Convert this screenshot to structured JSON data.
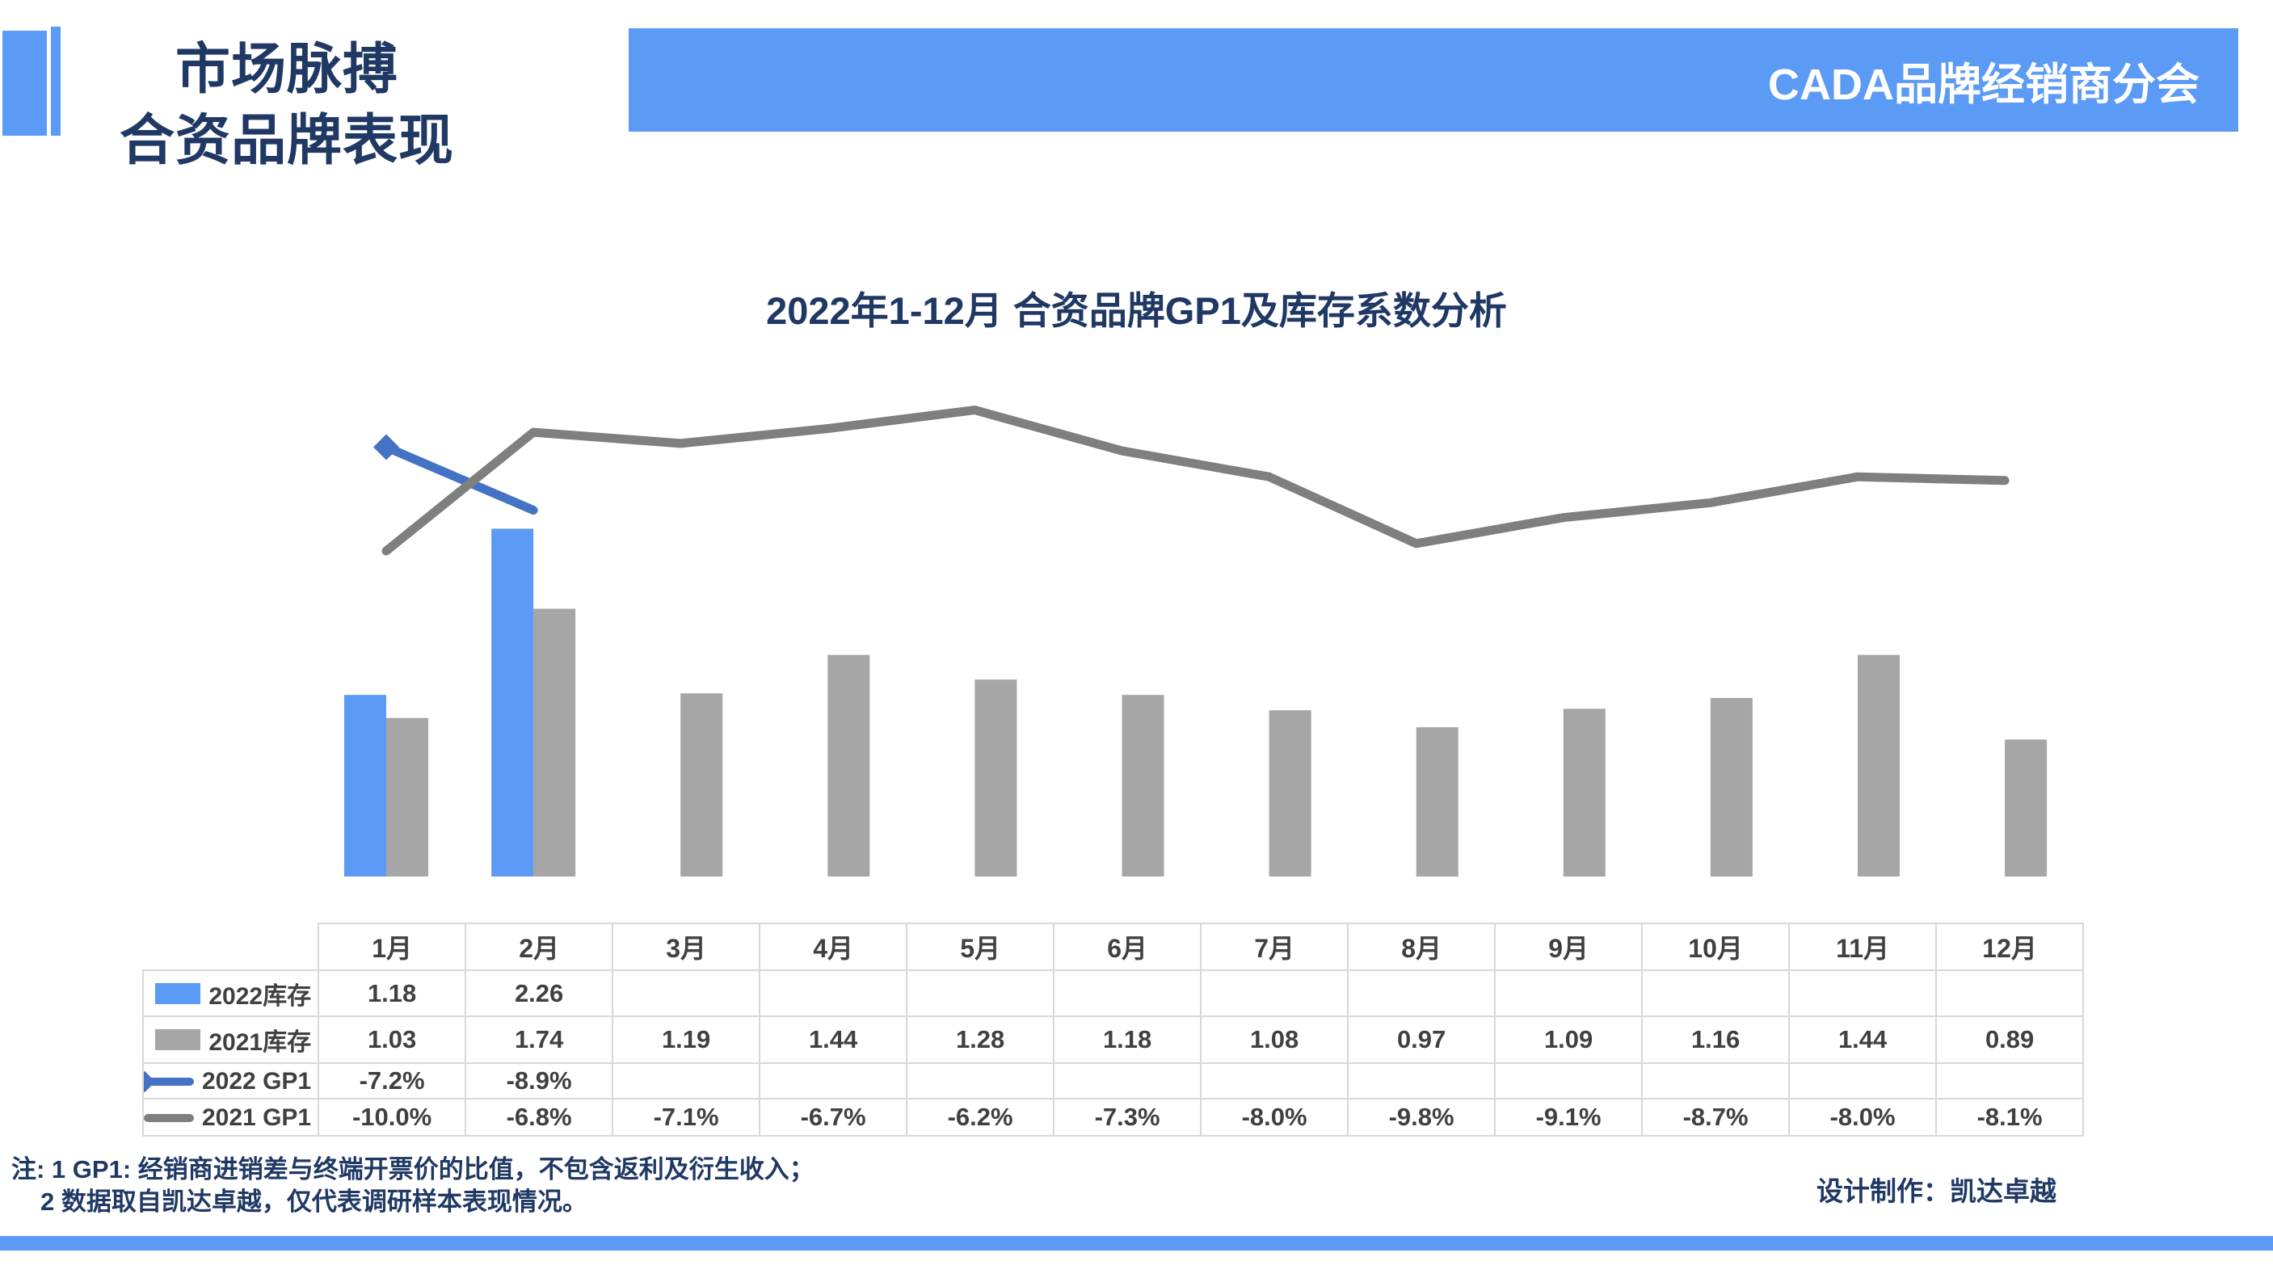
{
  "header": {
    "title_line1": "市场脉搏",
    "title_line2": "合资品牌表现",
    "banner_text": "CADA品牌经销商分会"
  },
  "chart": {
    "title": "2022年1-12月 合资品牌GP1及库存系数分析"
  },
  "chart_data": {
    "type": "combo",
    "title": "2022年1-12月 合资品牌GP1及库存系数分析",
    "categories": [
      "1月",
      "2月",
      "3月",
      "4月",
      "5月",
      "6月",
      "7月",
      "8月",
      "9月",
      "10月",
      "11月",
      "12月"
    ],
    "series": [
      {
        "name": "2022库存",
        "type": "bar",
        "axis": "left",
        "color": "#5B9BF5",
        "values": [
          1.18,
          2.26,
          null,
          null,
          null,
          null,
          null,
          null,
          null,
          null,
          null,
          null
        ]
      },
      {
        "name": "2021库存",
        "type": "bar",
        "axis": "left",
        "color": "#A6A6A6",
        "values": [
          1.03,
          1.74,
          1.19,
          1.44,
          1.28,
          1.18,
          1.08,
          0.97,
          1.09,
          1.16,
          1.44,
          0.89
        ]
      },
      {
        "name": "2022 GP1",
        "type": "line",
        "axis": "right",
        "unit": "%",
        "color": "#4472C4",
        "marker": "diamond-first",
        "values": [
          -7.2,
          -8.9,
          null,
          null,
          null,
          null,
          null,
          null,
          null,
          null,
          null,
          null
        ]
      },
      {
        "name": "2021 GP1",
        "type": "line",
        "axis": "right",
        "unit": "%",
        "color": "#7F7F7F",
        "marker": "none",
        "values": [
          -10.0,
          -6.8,
          -7.1,
          -6.7,
          -6.2,
          -7.3,
          -8.0,
          -9.8,
          -9.1,
          -8.7,
          -8.0,
          -8.1
        ]
      }
    ],
    "layout_hints": {
      "legend_position": "table-left",
      "grid": false,
      "axes_visible": false
    }
  },
  "table": {
    "header": [
      "1月",
      "2月",
      "3月",
      "4月",
      "5月",
      "6月",
      "7月",
      "8月",
      "9月",
      "10月",
      "11月",
      "12月"
    ],
    "rows": [
      {
        "label": "2022库存",
        "swatch": "bar-blue",
        "values": [
          "1.18",
          "2.26",
          "",
          "",
          "",
          "",
          "",
          "",
          "",
          "",
          "",
          ""
        ]
      },
      {
        "label": "2021库存",
        "swatch": "bar-gray",
        "values": [
          "1.03",
          "1.74",
          "1.19",
          "1.44",
          "1.28",
          "1.18",
          "1.08",
          "0.97",
          "1.09",
          "1.16",
          "1.44",
          "0.89"
        ]
      },
      {
        "label": "2022 GP1",
        "swatch": "line-blue",
        "values": [
          "-7.2%",
          "-8.9%",
          "",
          "",
          "",
          "",
          "",
          "",
          "",
          "",
          "",
          ""
        ]
      },
      {
        "label": "2021 GP1",
        "swatch": "line-gray",
        "values": [
          "-10.0%",
          "-6.8%",
          "-7.1%",
          "-6.7%",
          "-6.2%",
          "-7.3%",
          "-8.0%",
          "-9.8%",
          "-9.1%",
          "-8.7%",
          "-8.0%",
          "-8.1%"
        ]
      }
    ]
  },
  "footer": {
    "note_line1": "注: 1  GP1: 经销商进销差与终端开票价的比值，不包含返利及衍生收入；",
    "note_line2": "2 数据取自凯达卓越，仅代表调研样本表现情况。",
    "credit": "设计制作：凯达卓越"
  },
  "colors": {
    "accent_blue": "#5B9BF5",
    "navy_text": "#1F3864",
    "bar_gray": "#A6A6A6",
    "line_gray": "#7F7F7F",
    "line_blue": "#4472C4",
    "table_border": "#D8D8D8",
    "table_text": "#404040",
    "banner_text_color": "#FFFFFF"
  }
}
